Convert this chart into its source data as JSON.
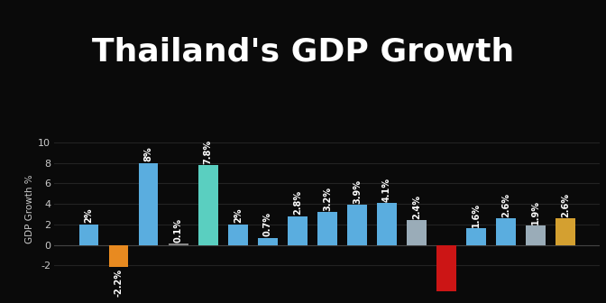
{
  "title": "Thailand's GDP Growth",
  "ylabel": "GDP Growth %",
  "background_color": "#0a0a0a",
  "title_color": "#ffffff",
  "title_fontsize": 26,
  "ylim": [
    -4.5,
    11.5
  ],
  "yticks": [
    -2,
    0,
    2,
    4,
    6,
    8,
    10
  ],
  "values": [
    2.0,
    -2.2,
    8.0,
    0.1,
    7.8,
    2.0,
    0.7,
    2.8,
    3.2,
    3.9,
    4.1,
    2.4,
    -6.0,
    1.6,
    2.6,
    1.9,
    2.6
  ],
  "bar_colors": [
    "#5aaddf",
    "#e88a20",
    "#5aaddf",
    "#888888",
    "#5acfc0",
    "#5aaddf",
    "#5aaddf",
    "#5aaddf",
    "#5aaddf",
    "#5aaddf",
    "#5aaddf",
    "#9aacb8",
    "#cc1515",
    "#5aaddf",
    "#5aaddf",
    "#9aacb8",
    "#d4a030"
  ],
  "value_labels": [
    "2%",
    "-2.2%",
    "8%",
    "0.1%",
    "7.8%",
    "2%",
    "0.7%",
    "2.8%",
    "3.2%",
    "3.9%",
    "4.1%",
    "2.4%",
    "",
    "1.6%",
    "2.6%",
    "1.9%",
    "2.6%"
  ],
  "grid_color": "#2a2a2a",
  "grid_alpha": 0.8,
  "axis_color": "#cccccc",
  "label_fontsize": 7.0,
  "bar_width": 0.65
}
